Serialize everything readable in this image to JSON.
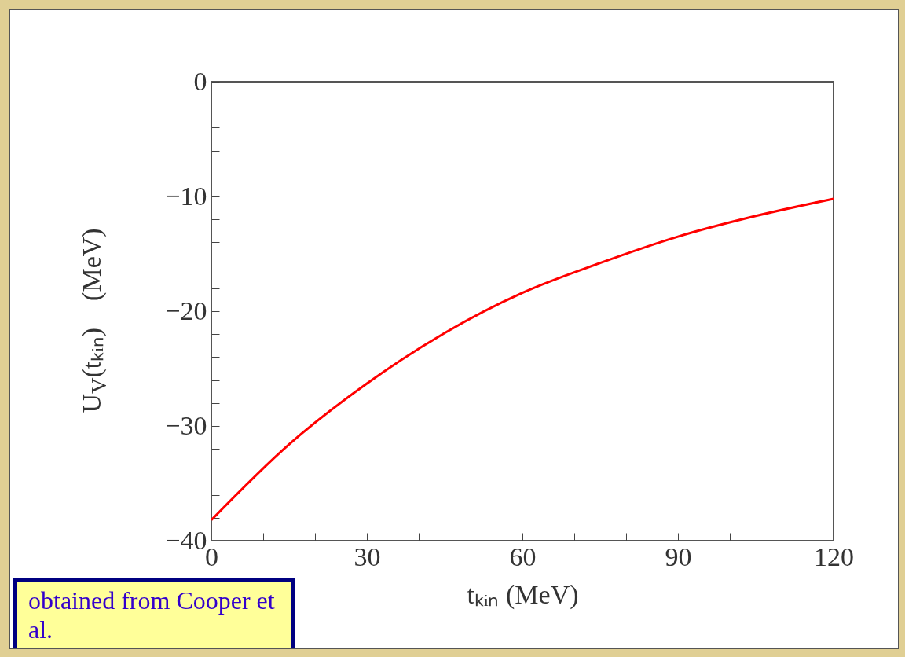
{
  "chart_data": {
    "type": "line",
    "xlabel": "tₖᵢₙ (MeV)",
    "ylabel": "U$_{V}$(tₖᵢₙ)    (MeV)",
    "x": [
      0,
      15,
      30,
      45,
      60,
      75,
      90,
      105,
      120
    ],
    "series": [
      {
        "color": "#ff0000",
        "values": [
          -38.2,
          -31.6,
          -26.3,
          -21.9,
          -18.4,
          -15.8,
          -13.5,
          -11.7,
          -10.2
        ]
      }
    ],
    "xlim": [
      0,
      120
    ],
    "xticks": [
      0,
      {
        "value": 10,
        "label": null
      },
      {
        "value": 20,
        "label": null
      },
      30,
      {
        "value": 40,
        "label": null
      },
      {
        "value": 50,
        "label": null
      },
      60,
      {
        "value": 70,
        "label": null
      },
      {
        "value": 80,
        "label": null
      },
      90,
      {
        "value": 100,
        "label": null
      },
      {
        "value": 110,
        "label": null
      },
      120
    ],
    "ylim": [
      -40,
      0
    ],
    "yticks": [
      -40,
      {
        "value": -38,
        "label": null
      },
      {
        "value": -36,
        "label": null
      },
      {
        "value": -34,
        "label": null
      },
      {
        "value": -32,
        "label": null
      },
      -30,
      {
        "value": -28,
        "label": null
      },
      {
        "value": -26,
        "label": null
      },
      {
        "value": -24,
        "label": null
      },
      {
        "value": -22,
        "label": null
      },
      -20,
      {
        "value": -18,
        "label": null
      },
      {
        "value": -16,
        "label": null
      },
      {
        "value": -14,
        "label": null
      },
      {
        "value": -12,
        "label": null
      },
      -10,
      {
        "value": -8,
        "label": null
      },
      {
        "value": -6,
        "label": null
      },
      {
        "value": -4,
        "label": null
      },
      {
        "value": -2,
        "label": null
      },
      0
    ],
    "grid": false,
    "marker": "none",
    "line_style": "solid",
    "annotations": [
      "obtained from Cooper et al."
    ]
  }
}
